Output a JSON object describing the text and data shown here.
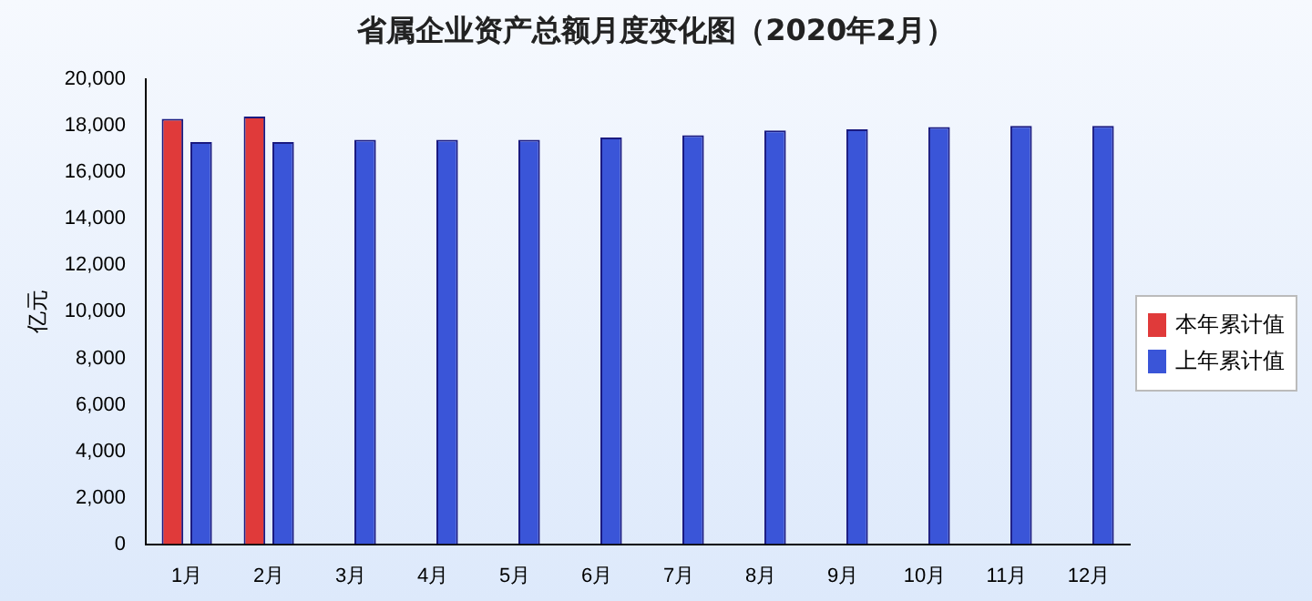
{
  "chart_data": {
    "type": "bar",
    "title": "省属企业资产总额月度变化图（2020年2月）",
    "ylabel": "亿元",
    "categories": [
      "1月",
      "2月",
      "3月",
      "4月",
      "5月",
      "6月",
      "7月",
      "8月",
      "9月",
      "10月",
      "11月",
      "12月"
    ],
    "series": [
      {
        "name": "本年累计值",
        "color": "#e03a3a",
        "values": [
          18300,
          18400,
          null,
          null,
          null,
          null,
          null,
          null,
          null,
          null,
          null,
          null
        ]
      },
      {
        "name": "上年累计值",
        "color": "#3a55d8",
        "values": [
          17300,
          17300,
          17400,
          17400,
          17400,
          17500,
          17600,
          17800,
          17850,
          17950,
          18000,
          18000
        ]
      }
    ],
    "ylim": [
      0,
      20000
    ],
    "yticks": [
      0,
      {
        "value": 2000,
        "label": "2,000"
      },
      {
        "value": 4000,
        "label": "4,000"
      },
      {
        "value": 6000,
        "label": "6,000"
      },
      {
        "value": 8000,
        "label": "8,000"
      },
      {
        "value": 10000,
        "label": "10,000"
      },
      {
        "value": 12000,
        "label": "12,000"
      },
      {
        "value": 14000,
        "label": "14,000"
      },
      {
        "value": 16000,
        "label": "16,000"
      },
      {
        "value": 18000,
        "label": "18,000"
      },
      {
        "value": 20000,
        "label": "20,000"
      }
    ],
    "grid": false,
    "legend": "right"
  }
}
